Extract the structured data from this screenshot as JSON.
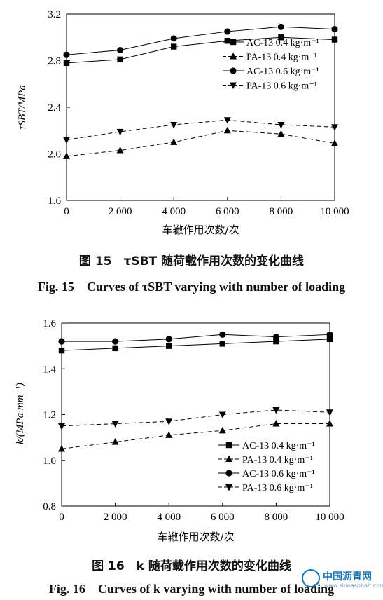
{
  "charts": [
    {
      "caption_cn": "图 15　τSBT 随荷载作用次数的变化曲线",
      "caption_en": "Fig. 15　Curves of τSBT varying with number of loading"
    },
    {
      "caption_cn": "图 16　k 随荷载作用次数的变化曲线",
      "caption_en": "Fig. 16　Curves of k varying with number of loading"
    }
  ],
  "watermark": {
    "text": "中国沥青网",
    "url": "www.sinoasphalt.com"
  },
  "chart_data": [
    {
      "type": "line",
      "title": "",
      "xlabel": "车辙作用次数/次",
      "ylabel": "τSBT/MPa",
      "x": [
        0,
        2000,
        4000,
        6000,
        8000,
        10000
      ],
      "x_tick_labels": [
        "0",
        "2 000",
        "4 000",
        "6 000",
        "8 000",
        "10 000"
      ],
      "xlim": [
        0,
        10000
      ],
      "ylim": [
        1.6,
        3.2
      ],
      "y_ticks": [
        1.6,
        2.0,
        2.4,
        2.8,
        3.2
      ],
      "y_tick_labels": [
        "1.6",
        "2.0",
        "2.4",
        "2.8",
        "3.2"
      ],
      "legend_position": "right",
      "series": [
        {
          "name": "AC-13 0.4 kg·m⁻¹",
          "marker": "square",
          "dash": "solid",
          "values": [
            2.78,
            2.81,
            2.92,
            2.97,
            3.0,
            2.98
          ]
        },
        {
          "name": "PA-13 0.4 kg·m⁻¹",
          "marker": "triangle-up",
          "dash": "dashed",
          "values": [
            1.98,
            2.03,
            2.1,
            2.2,
            2.17,
            2.09
          ]
        },
        {
          "name": "AC-13 0.6 kg·m⁻¹",
          "marker": "circle",
          "dash": "solid",
          "values": [
            2.85,
            2.89,
            2.99,
            3.05,
            3.09,
            3.07
          ]
        },
        {
          "name": "PA-13 0.6 kg·m⁻¹",
          "marker": "triangle-down",
          "dash": "dashed",
          "values": [
            2.12,
            2.19,
            2.25,
            2.29,
            2.25,
            2.23
          ]
        }
      ]
    },
    {
      "type": "line",
      "title": "",
      "xlabel": "车辙作用次数/次",
      "ylabel": "k/(MPa·mm⁻¹)",
      "x": [
        0,
        2000,
        4000,
        6000,
        8000,
        10000
      ],
      "x_tick_labels": [
        "0",
        "2 000",
        "4 000",
        "6 000",
        "8 000",
        "10 000"
      ],
      "xlim": [
        0,
        10000
      ],
      "ylim": [
        0.8,
        1.6
      ],
      "y_ticks": [
        0.8,
        1.0,
        1.2,
        1.4,
        1.6
      ],
      "y_tick_labels": [
        "0.8",
        "1.0",
        "1.2",
        "1.4",
        "1.6"
      ],
      "legend_position": "lower-right",
      "series": [
        {
          "name": "AC-13 0.4 kg·m⁻¹",
          "marker": "square",
          "dash": "solid",
          "values": [
            1.48,
            1.49,
            1.5,
            1.51,
            1.52,
            1.53
          ]
        },
        {
          "name": "PA-13 0.4 kg·m⁻¹",
          "marker": "triangle-up",
          "dash": "dashed",
          "values": [
            1.05,
            1.08,
            1.11,
            1.13,
            1.16,
            1.16
          ]
        },
        {
          "name": "AC-13 0.6 kg·m⁻¹",
          "marker": "circle",
          "dash": "solid",
          "values": [
            1.52,
            1.52,
            1.53,
            1.55,
            1.54,
            1.55
          ]
        },
        {
          "name": "PA-13 0.6 kg·m⁻¹",
          "marker": "triangle-down",
          "dash": "dashed",
          "values": [
            1.15,
            1.16,
            1.17,
            1.2,
            1.22,
            1.21
          ]
        }
      ]
    }
  ]
}
